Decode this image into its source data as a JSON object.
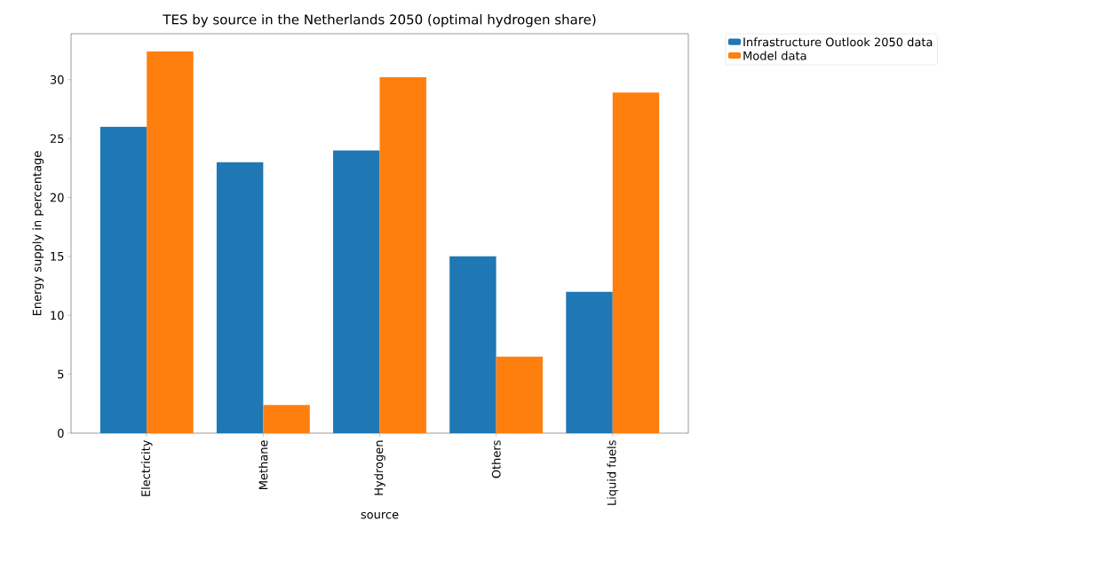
{
  "chart_data": {
    "type": "bar",
    "title": "TES by source in the Netherlands 2050 (optimal hydrogen share)",
    "xlabel": "source",
    "ylabel": "Energy supply in percentage",
    "categories": [
      "Electricity",
      "Methane",
      "Hydrogen",
      "Others",
      "Liquid fuels"
    ],
    "series": [
      {
        "name": "Infrastructure Outlook 2050 data",
        "color": "#1f77b4",
        "values": [
          26.0,
          23.0,
          24.0,
          15.0,
          12.0
        ]
      },
      {
        "name": "Model data",
        "color": "#ff7f0e",
        "values": [
          32.4,
          2.4,
          30.2,
          6.5,
          28.9
        ]
      }
    ],
    "ylim": [
      0,
      33.9
    ],
    "yticks": [
      0,
      5,
      10,
      15,
      20,
      25,
      30
    ],
    "grid": false,
    "legend": "top right"
  }
}
